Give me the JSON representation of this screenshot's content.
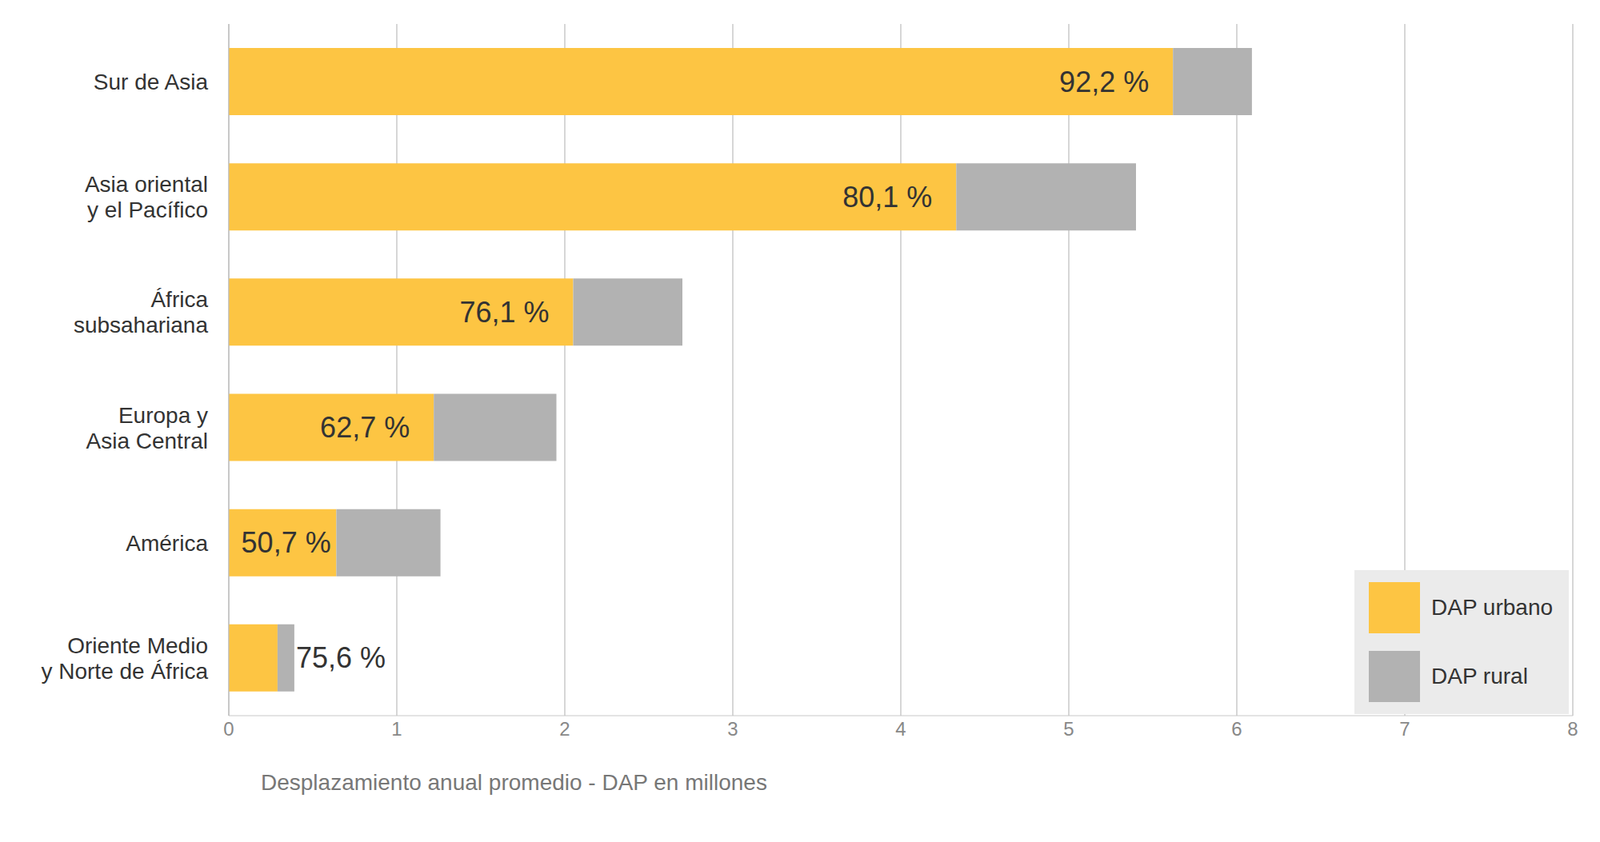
{
  "chart_data": {
    "type": "bar",
    "orientation": "horizontal",
    "stacked": true,
    "categories": [
      "Sur de Asia",
      "Asia oriental\ny el Pacífico",
      "África\nsubsahariana",
      "Europa y\nAsia Central",
      "América",
      "Oriente Medio\ny Norte de África"
    ],
    "series": [
      {
        "name": "DAP urbano",
        "color": "#FDC543",
        "values": [
          5.62,
          4.33,
          2.05,
          1.22,
          0.64,
          0.29
        ],
        "share_labels": [
          "92,2 %",
          "80,1 %",
          "76,1 %",
          "62,7 %",
          "50,7 %",
          "75,6 %"
        ]
      },
      {
        "name": "DAP rural",
        "color": "#B2B2B2",
        "values": [
          0.47,
          1.07,
          0.65,
          0.73,
          0.62,
          0.1
        ]
      }
    ],
    "xlabel": "Desplazamiento anual promedio - DAP en millones",
    "xlim": [
      0,
      8
    ],
    "xticks": [
      0,
      1,
      2,
      3,
      4,
      5,
      6,
      7,
      8
    ],
    "grid": true,
    "legend": "lower right"
  }
}
